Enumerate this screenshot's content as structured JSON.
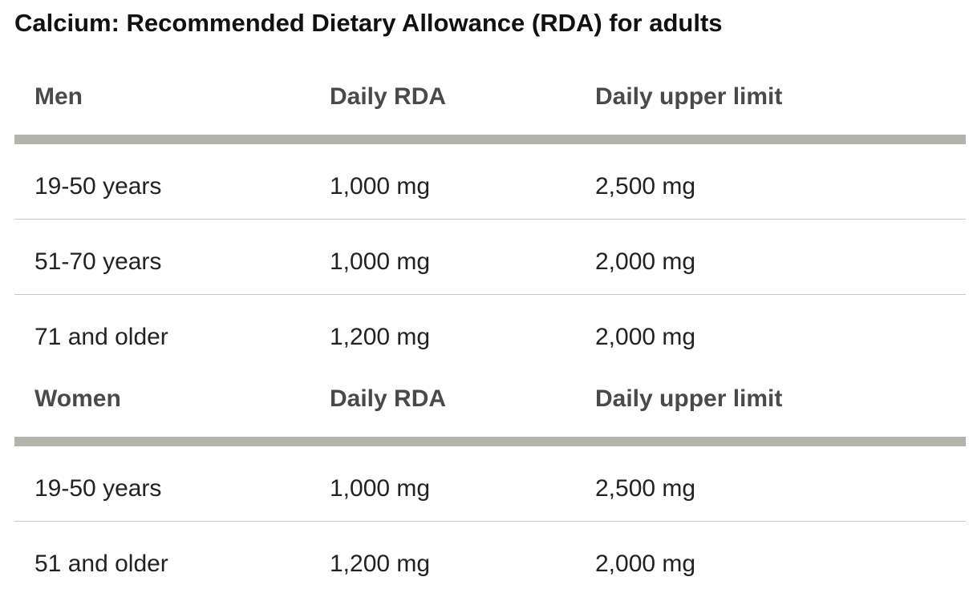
{
  "title": "Calcium: Recommended Dietary Allowance (RDA) for adults",
  "sections": [
    {
      "headers": [
        "Men",
        "Daily RDA",
        "Daily upper limit"
      ],
      "rows": [
        [
          "19-50 years",
          "1,000 mg",
          "2,500 mg"
        ],
        [
          "51-70 years",
          "1,000 mg",
          "2,000 mg"
        ],
        [
          "71 and older",
          "1,200 mg",
          "2,000 mg"
        ]
      ]
    },
    {
      "headers": [
        "Women",
        "Daily RDA",
        "Daily upper limit"
      ],
      "rows": [
        [
          "19-50 years",
          "1,000 mg",
          "2,500 mg"
        ],
        [
          "51 and older",
          "1,200 mg",
          "2,000 mg"
        ]
      ]
    }
  ]
}
